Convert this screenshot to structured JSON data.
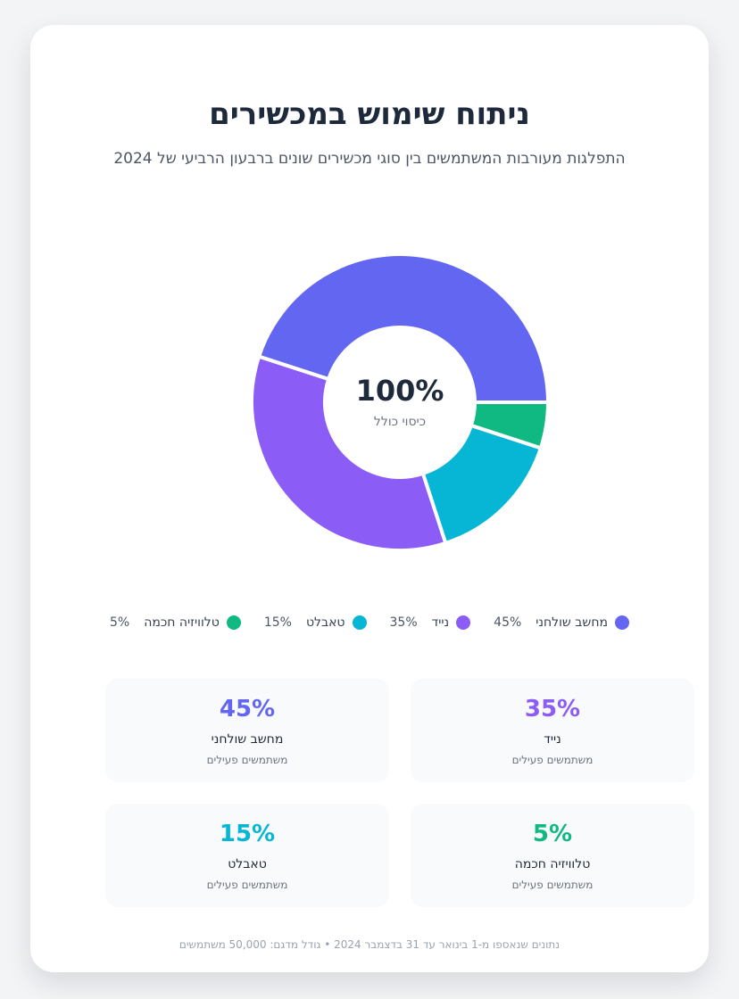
{
  "header": {
    "title": "ניתוח שימוש במכשירים",
    "subtitle": "התפלגות מעורבות המשתמשים בין סוגי מכשירים שונים ברבעון הרביעי של 2024"
  },
  "center": {
    "value": "100%",
    "label": "כיסוי כולל"
  },
  "chart_data": {
    "type": "pie",
    "donut": true,
    "categories": [
      "מחשב שולחני",
      "נייד",
      "טאבלט",
      "טלוויזיה חכמה"
    ],
    "values": [
      45,
      35,
      15,
      5
    ],
    "colors": [
      "#6366f1",
      "#8b5cf6",
      "#06b6d4",
      "#10b981"
    ],
    "legend_position": "bottom"
  },
  "legend": [
    {
      "label": "מחשב שולחני",
      "value": "45%",
      "color": "#6366f1"
    },
    {
      "label": "נייד",
      "value": "35%",
      "color": "#8b5cf6"
    },
    {
      "label": "טאבלט",
      "value": "15%",
      "color": "#06b6d4"
    },
    {
      "label": "טלוויזיה חכמה",
      "value": "5%",
      "color": "#10b981"
    }
  ],
  "stats": [
    {
      "value": "45%",
      "label": "מחשב שולחני",
      "sub": "משתמשים פעילים",
      "color": "#6366f1"
    },
    {
      "value": "35%",
      "label": "נייד",
      "sub": "משתמשים פעילים",
      "color": "#8b5cf6"
    },
    {
      "value": "15%",
      "label": "טאבלט",
      "sub": "משתמשים פעילים",
      "color": "#06b6d4"
    },
    {
      "value": "5%",
      "label": "טלוויזיה חכמה",
      "sub": "משתמשים פעילים",
      "color": "#10b981"
    }
  ],
  "footer": {
    "text": "נתונים שנאספו מ-1 בינואר עד 31 בדצמבר 2024 • גודל מדגם: 50,000 משתמשים"
  }
}
